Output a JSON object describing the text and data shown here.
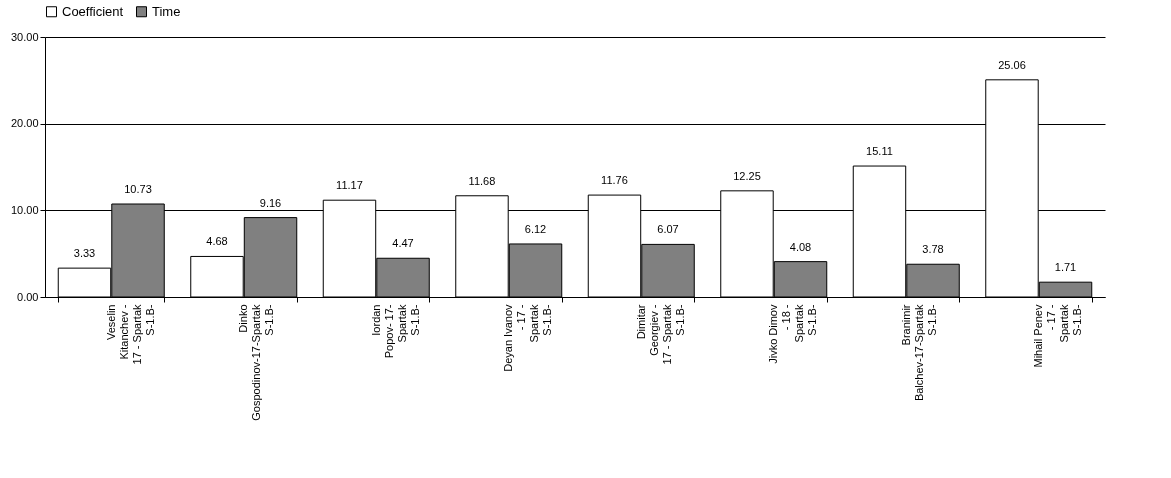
{
  "chart_data": {
    "type": "bar",
    "categories": [
      "Veselin Kitanchev - 17 - Spartak S-1.B-",
      "Dinko Gospodinov-17-Spartak S-1.B-",
      "Iordan Popov- 17- Spartak S-1.B-",
      "Deyan Ivanov - 17 - Spartak S-1.B-",
      "Dimitar Georgiev - 17 - Spartak S-1.B-",
      "Jivko Dimov - 18 - Spartak S-1.B-",
      "Branimir Balchev-17-Spartak S-1.B-",
      "Mihail Penev - 17 - Spartak S-1.B-"
    ],
    "series": [
      {
        "name": "Coefficient",
        "color": "#ffffff",
        "values": [
          3.33,
          4.68,
          11.17,
          11.68,
          11.76,
          12.25,
          15.11,
          25.06
        ]
      },
      {
        "name": "Time",
        "color": "#808080",
        "values": [
          10.73,
          9.16,
          4.47,
          6.12,
          6.07,
          4.08,
          3.78,
          1.71
        ]
      }
    ],
    "ylim": [
      0,
      30
    ],
    "yticks": [
      {
        "value": 0,
        "label": "0.00"
      },
      {
        "value": 10,
        "label": "10.00"
      },
      {
        "value": 20,
        "label": "20.00"
      },
      {
        "value": 30,
        "label": "30.00"
      }
    ],
    "grid": "y",
    "legend": "top",
    "data_labels": true
  }
}
